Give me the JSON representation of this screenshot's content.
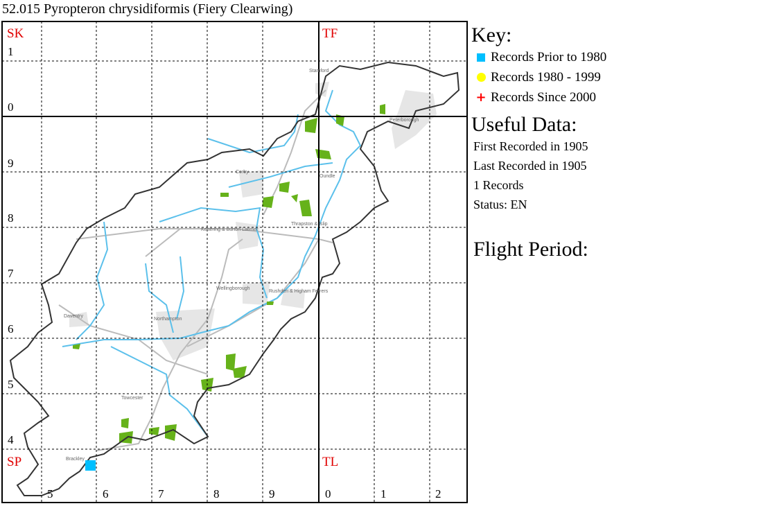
{
  "title": "52.015 Pyropteron chrysidiformis (Fiery Clearwing)",
  "map": {
    "squares": {
      "nw": "SK",
      "ne": "TF",
      "sw": "SP",
      "se": "TL"
    },
    "row_labels": [
      "1",
      "0",
      "9",
      "8",
      "7",
      "6",
      "5",
      "4"
    ],
    "col_labels": [
      "5",
      "6",
      "7",
      "8",
      "9",
      "0",
      "1",
      "2"
    ],
    "towns": [
      "Stamford",
      "Peterborough",
      "Corby",
      "Oundle",
      "Kettering & Burton Latimer",
      "Thrapston & Islip",
      "Wellingborough",
      "Rushden & Higham Ferrers",
      "Northampton",
      "Daventry",
      "Towcester",
      "Brackley"
    ],
    "records": [
      {
        "period": "prior_1980",
        "grid_ref": "SP5836"
      }
    ],
    "colors": {
      "prior_1980": "#00bfff",
      "1980_1999": "#ffff00",
      "since_2000": "#ff0000",
      "squares": "#e00000",
      "rivers": "#5bc0eb",
      "woods": "#66b21a",
      "urban": "#e0e0e0",
      "roads": "#b9b9b9"
    }
  },
  "key": {
    "heading": "Key:",
    "items": [
      {
        "label": "Records Prior to 1980",
        "icon": "square",
        "color": "#00bfff"
      },
      {
        "label": "Records 1980 - 1999",
        "icon": "circle",
        "color": "#ffff00"
      },
      {
        "label": "Records Since 2000",
        "icon": "plus",
        "color": "#ff0000"
      }
    ]
  },
  "useful_data": {
    "heading": "Useful Data:",
    "first": "First Recorded in 1905",
    "last": "Last Recorded in 1905",
    "count": "1 Records",
    "status": "Status: EN"
  },
  "flight_period": {
    "heading": "Flight Period:"
  }
}
